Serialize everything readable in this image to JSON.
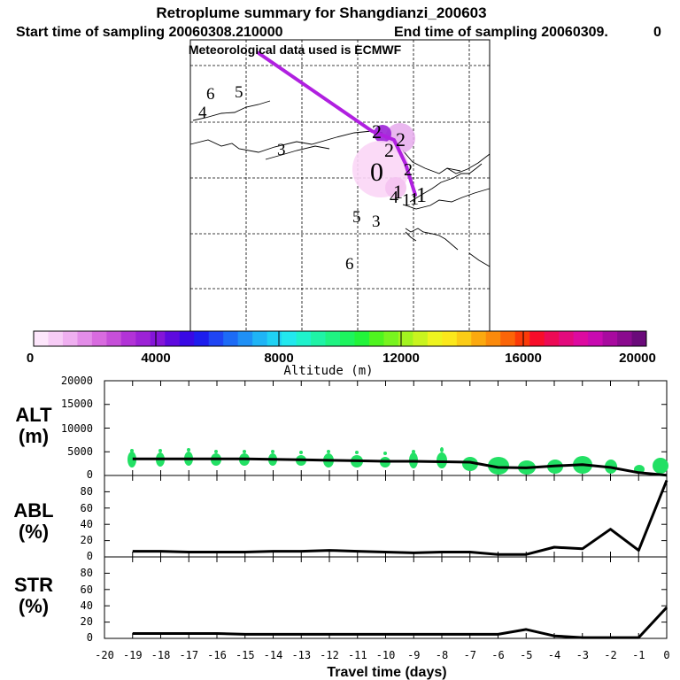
{
  "header": {
    "title": "Retroplume summary for Shangdianzi_200603",
    "start_label": "Start time of sampling 20060308.210000",
    "end_label": "End time of sampling 20060309.",
    "end_suffix": "0",
    "met_label": "Meteorological data used is ECMWF"
  },
  "map": {
    "plume_color": "#b020e0",
    "numbers": [
      "6",
      "5",
      "4",
      "3",
      "2",
      "2",
      "2",
      "2",
      "0",
      "1",
      "1",
      "4",
      "1",
      "1",
      "5",
      "3",
      "6"
    ]
  },
  "colorbar": {
    "tick_labels": [
      "0",
      "4000",
      "8000",
      "12000",
      "16000",
      "20000"
    ],
    "title": "Altitude (m)",
    "colors": [
      "#fde6fb",
      "#f7ccf6",
      "#efaff0",
      "#e38de8",
      "#d86bdf",
      "#c64fd9",
      "#b233d7",
      "#9c22d6",
      "#8415d8",
      "#5e0ade",
      "#3909e4",
      "#1d1ded",
      "#1f45f3",
      "#1d6bf6",
      "#1f90f6",
      "#1fb4f6",
      "#1fd2f4",
      "#22e8ee",
      "#1ff2cc",
      "#1ff3a6",
      "#1ff382",
      "#1df45e",
      "#22f43a",
      "#4ff41f",
      "#78f41f",
      "#a3f41f",
      "#c9f41f",
      "#eef41f",
      "#fbe81c",
      "#fbcc16",
      "#fba90f",
      "#fb8a0c",
      "#fb6508",
      "#fb3a08",
      "#f80d2a",
      "#ec0a55",
      "#e30a7d",
      "#dd0aa0",
      "#c80ab0",
      "#a80a9f",
      "#8a0a8e",
      "#6a0a7a"
    ]
  },
  "panels": {
    "alt": {
      "label_top": "ALT",
      "label_bottom": "(m)"
    },
    "abl": {
      "label_top": "ABL",
      "label_bottom": "(%)"
    },
    "str": {
      "label_top": "STR",
      "label_bottom": "(%)"
    }
  },
  "chart_data": [
    {
      "type": "line",
      "title": "ALT (m)",
      "xlabel": "Travel time (days)",
      "ylabel": "ALT (m)",
      "xlim": [
        -20,
        0
      ],
      "ylim": [
        0,
        20000
      ],
      "yticks": [
        "20000",
        "15000",
        "10000",
        "5000",
        "0"
      ],
      "x": [
        -19,
        -18,
        -17,
        -16,
        -15,
        -14,
        -13,
        -12,
        -11,
        -10,
        -9,
        -8,
        -7,
        -6,
        -5,
        -4,
        -3,
        -2,
        -1,
        0
      ],
      "values": [
        3500,
        3500,
        3500,
        3500,
        3500,
        3400,
        3300,
        3200,
        3100,
        3000,
        3000,
        2900,
        2800,
        1700,
        1600,
        2000,
        2300,
        1700,
        600,
        50
      ]
    },
    {
      "type": "line",
      "title": "ABL (%)",
      "xlabel": "Travel time (days)",
      "ylabel": "ABL (%)",
      "xlim": [
        -20,
        0
      ],
      "ylim": [
        0,
        100
      ],
      "yticks": [
        "80",
        "60",
        "40",
        "20",
        "0"
      ],
      "x": [
        -19,
        -18,
        -17,
        -16,
        -15,
        -14,
        -13,
        -12,
        -11,
        -10,
        -9,
        -8,
        -7,
        -6,
        -5,
        -4,
        -3,
        -2,
        -1,
        0
      ],
      "values": [
        7,
        7,
        6,
        6,
        6,
        7,
        7,
        8,
        7,
        6,
        5,
        6,
        6,
        3,
        3,
        12,
        10,
        34,
        8,
        94
      ]
    },
    {
      "type": "line",
      "title": "STR (%)",
      "xlabel": "Travel time (days)",
      "ylabel": "STR (%)",
      "xlim": [
        -20,
        0
      ],
      "ylim": [
        0,
        100
      ],
      "yticks": [
        "80",
        "60",
        "40",
        "20",
        "0"
      ],
      "x": [
        -19,
        -18,
        -17,
        -16,
        -15,
        -14,
        -13,
        -12,
        -11,
        -10,
        -9,
        -8,
        -7,
        -6,
        -5,
        -4,
        -3,
        -2,
        -1,
        0
      ],
      "values": [
        6,
        6,
        6,
        6,
        5,
        5,
        5,
        5,
        5,
        5,
        5,
        5,
        5,
        5,
        11,
        3,
        1,
        1,
        1,
        38
      ]
    }
  ],
  "x_axis": {
    "tick_labels": [
      "-20",
      "-19",
      "-18",
      "-17",
      "-16",
      "-15",
      "-14",
      "-13",
      "-12",
      "-11",
      "-10",
      "-9",
      "-8",
      "-7",
      "-6",
      "-5",
      "-4",
      "-3",
      "-2",
      "-1",
      "0"
    ],
    "title": "Travel time (days)"
  }
}
